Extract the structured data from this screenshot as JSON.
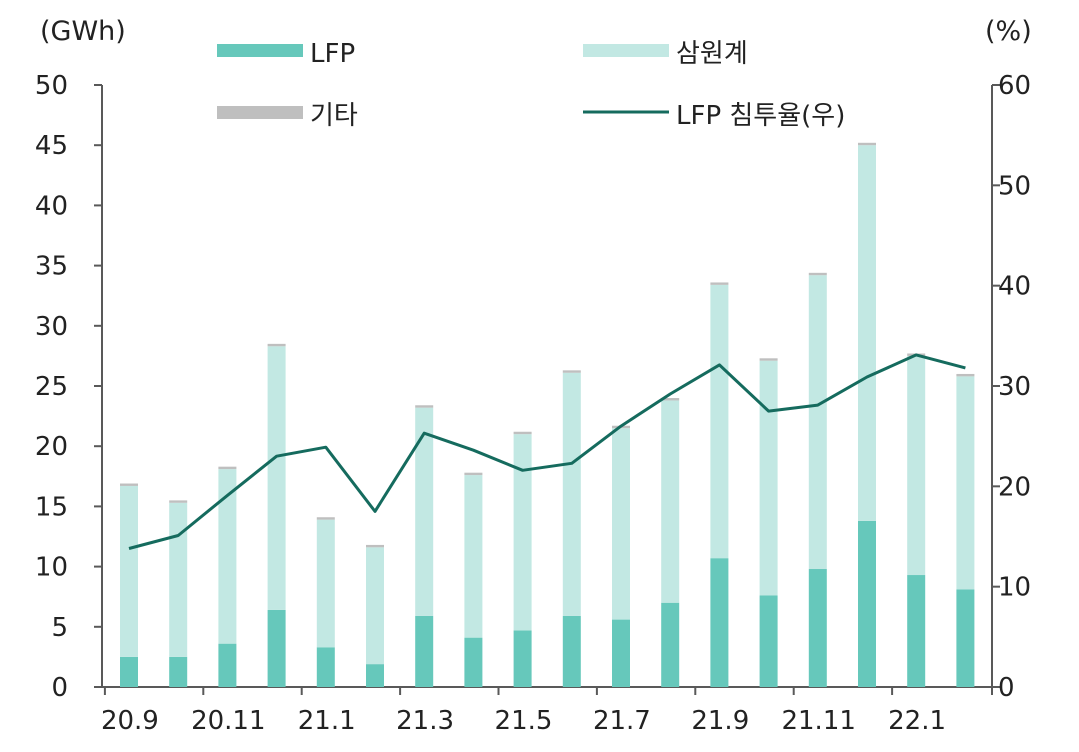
{
  "chart_data": {
    "type": "bar",
    "stacked": true,
    "categories": [
      "20.9",
      "20.10",
      "20.11",
      "20.12",
      "21.1",
      "21.2",
      "21.3",
      "21.4",
      "21.5",
      "21.6",
      "21.7",
      "21.8",
      "21.9",
      "21.10",
      "21.11",
      "21.12",
      "22.1",
      "22.2"
    ],
    "x_tick_labels": [
      "20.9",
      "20.11",
      "21.1",
      "21.3",
      "21.5",
      "21.7",
      "21.9",
      "21.11",
      "22.1"
    ],
    "series": [
      {
        "name": "LFP",
        "axis": "left",
        "kind": "bar",
        "color": "#66c8bb",
        "values": [
          2.5,
          2.5,
          3.6,
          6.4,
          3.3,
          1.9,
          5.9,
          4.1,
          4.7,
          5.9,
          5.6,
          7.0,
          10.7,
          7.6,
          9.8,
          13.8,
          9.3,
          8.1
        ]
      },
      {
        "name": "삼원계",
        "axis": "left",
        "kind": "bar",
        "color": "#c2e8e3",
        "values": [
          14.2,
          12.8,
          14.5,
          21.9,
          10.6,
          9.7,
          17.3,
          13.5,
          16.3,
          20.2,
          15.9,
          16.8,
          22.7,
          19.5,
          24.4,
          31.2,
          18.2,
          17.7
        ]
      },
      {
        "name": "기타",
        "axis": "left",
        "kind": "bar",
        "color": "#bfbfbf",
        "values": [
          0.2,
          0.2,
          0.2,
          0.2,
          0.2,
          0.2,
          0.2,
          0.2,
          0.2,
          0.2,
          0.2,
          0.2,
          0.2,
          0.2,
          0.2,
          0.2,
          0.2,
          0.2
        ]
      },
      {
        "name": "LFP 침투율(우)",
        "axis": "right",
        "kind": "line",
        "color": "#156b5e",
        "values": [
          13.8,
          15.1,
          19.1,
          23.0,
          23.9,
          17.5,
          25.3,
          23.6,
          21.6,
          22.3,
          26.0,
          29.2,
          32.1,
          27.5,
          28.1,
          30.9,
          33.1,
          31.8
        ]
      }
    ],
    "left_axis": {
      "label": "(GWh)",
      "range": [
        0,
        50
      ],
      "ticks": [
        0,
        5,
        10,
        15,
        20,
        25,
        30,
        35,
        40,
        45,
        50
      ]
    },
    "right_axis": {
      "label": "(%)",
      "range": [
        0,
        60
      ],
      "ticks": [
        0,
        10,
        20,
        30,
        40,
        50,
        60
      ]
    },
    "legend": {
      "placement": "top"
    }
  }
}
